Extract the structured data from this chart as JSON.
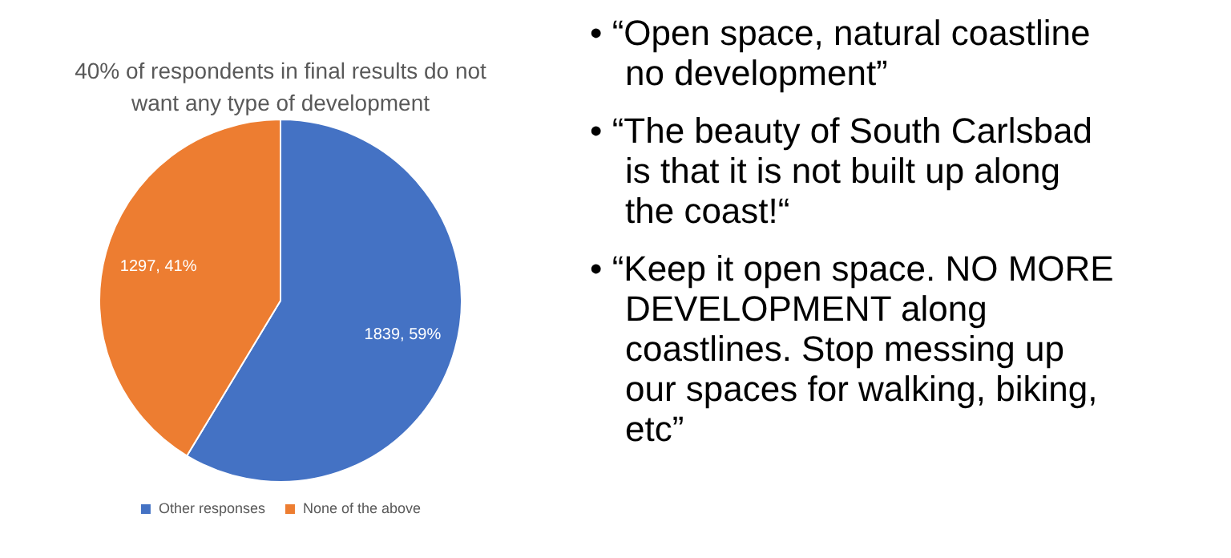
{
  "chart_data": {
    "type": "pie",
    "title": "40% of respondents in final results do not want any type of development",
    "categories": [
      "Other responses",
      "None of the above"
    ],
    "values": [
      1839,
      1297
    ],
    "colors": [
      "#4472c4",
      "#ed7d31"
    ],
    "value_labels": [
      "1839, 59%",
      "1297, 41%"
    ],
    "legend": "bottom",
    "annotations": [
      "• “Open space, natural coastline no development”",
      "• “The beauty of South Carlsbad is that it is not built up along the coast!“",
      "• “Keep it open space. NO MORE DEVELOPMENT along coastlines. Stop messing up our spaces for walking, biking, etc”"
    ]
  }
}
